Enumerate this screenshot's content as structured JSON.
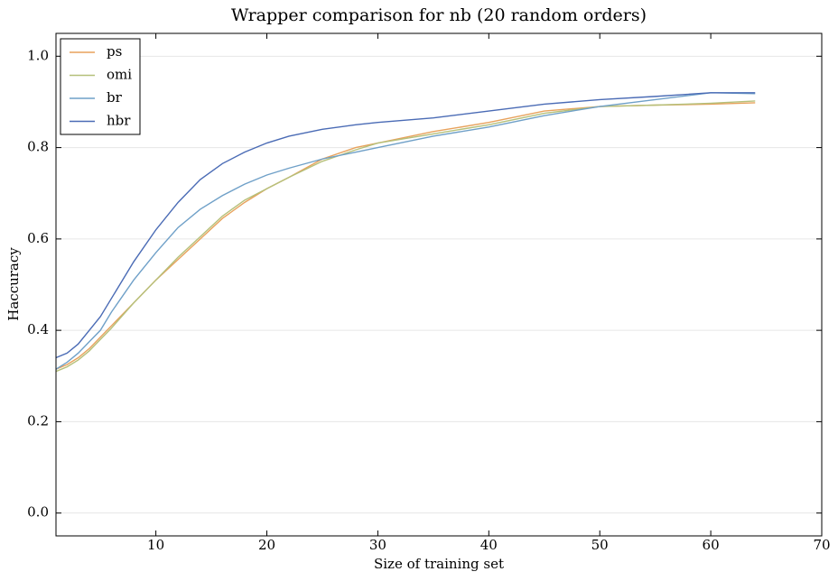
{
  "chart_data": {
    "type": "line",
    "title": "Wrapper comparison for nb (20 random orders)",
    "x_label": "Size of training set",
    "y_label": "Haccuracy",
    "x": [
      1,
      2,
      3,
      4,
      5,
      6,
      8,
      10,
      12,
      14,
      16,
      18,
      20,
      22,
      25,
      28,
      30,
      35,
      40,
      45,
      50,
      55,
      60,
      64
    ],
    "series": [
      {
        "name": "ps",
        "color": "#e8a25c",
        "values": [
          0.315,
          0.325,
          0.34,
          0.36,
          0.385,
          0.41,
          0.46,
          0.51,
          0.555,
          0.6,
          0.645,
          0.68,
          0.71,
          0.735,
          0.775,
          0.8,
          0.81,
          0.835,
          0.855,
          0.88,
          0.89,
          0.893,
          0.895,
          0.898
        ]
      },
      {
        "name": "omi",
        "color": "#b5c07a",
        "values": [
          0.31,
          0.32,
          0.335,
          0.355,
          0.38,
          0.405,
          0.46,
          0.51,
          0.56,
          0.605,
          0.65,
          0.685,
          0.71,
          0.735,
          0.77,
          0.795,
          0.81,
          0.83,
          0.85,
          0.875,
          0.89,
          0.893,
          0.897,
          0.902
        ]
      },
      {
        "name": "br",
        "color": "#6fa0c8",
        "values": [
          0.315,
          0.33,
          0.35,
          0.375,
          0.4,
          0.44,
          0.51,
          0.57,
          0.625,
          0.665,
          0.695,
          0.72,
          0.74,
          0.755,
          0.775,
          0.79,
          0.8,
          0.825,
          0.845,
          0.87,
          0.89,
          0.905,
          0.92,
          0.918
        ]
      },
      {
        "name": "hbr",
        "color": "#4a6bb5",
        "values": [
          0.34,
          0.35,
          0.37,
          0.4,
          0.43,
          0.47,
          0.55,
          0.62,
          0.68,
          0.73,
          0.765,
          0.79,
          0.81,
          0.825,
          0.84,
          0.85,
          0.855,
          0.865,
          0.88,
          0.895,
          0.905,
          0.912,
          0.92,
          0.92
        ]
      }
    ],
    "xlim": [
      1,
      70
    ],
    "ylim": [
      -0.05,
      1.05
    ],
    "xticks": [
      10,
      20,
      30,
      40,
      50,
      60,
      70
    ],
    "yticks": [
      {
        "value": 0,
        "label": "0.0"
      },
      0.2,
      0.4,
      0.6,
      0.8,
      {
        "value": 1,
        "label": "1.0"
      }
    ],
    "grid": true,
    "legend": "upper-left"
  }
}
